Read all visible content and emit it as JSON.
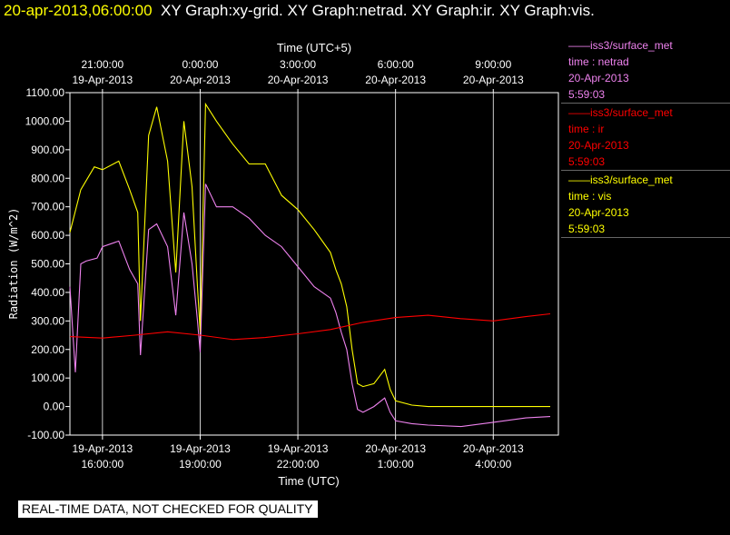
{
  "header": {
    "datetime": "20-apr-2013,06:00:00",
    "graphs": "XY Graph:xy-grid.  XY Graph:netrad.  XY Graph:ir.  XY Graph:vis."
  },
  "banner": "REAL-TIME DATA, NOT CHECKED FOR QUALITY",
  "legend": [
    {
      "name": "——iss3/surface_met",
      "label": "time : netrad",
      "date": "20-Apr-2013",
      "time": "5:59:03",
      "color": "#ee82ee"
    },
    {
      "name": "——iss3/surface_met",
      "label": "time : ir",
      "date": "20-Apr-2013",
      "time": "5:59:03",
      "color": "#ff0000"
    },
    {
      "name": "——iss3/surface_met",
      "label": "time : vis",
      "date": "20-Apr-2013",
      "time": "5:59:03",
      "color": "#ffff00"
    }
  ],
  "chart_data": {
    "type": "line",
    "xlabel": "Time (UTC)",
    "x2label": "Time (UTC+5)",
    "ylabel": "Radiation (W/m^2)",
    "ylim": [
      -100,
      1100
    ],
    "xlim": [
      "2013-04-19 15:00",
      "2013-04-20 06:00"
    ],
    "grid": true,
    "y_ticks": [
      "1100.00",
      "1000.00",
      "900.00",
      "800.00",
      "700.00",
      "600.00",
      "500.00",
      "400.00",
      "300.00",
      "200.00",
      "100.00",
      "0.00",
      "-100.00"
    ],
    "x_ticks": [
      {
        "t": "2013-04-19 16:00",
        "date": "19-Apr-2013",
        "time": "16:00:00"
      },
      {
        "t": "2013-04-19 19:00",
        "date": "19-Apr-2013",
        "time": "19:00:00"
      },
      {
        "t": "2013-04-19 22:00",
        "date": "19-Apr-2013",
        "time": "22:00:00"
      },
      {
        "t": "2013-04-20 01:00",
        "date": "20-Apr-2013",
        "time": "1:00:00"
      },
      {
        "t": "2013-04-20 04:00",
        "date": "20-Apr-2013",
        "time": "4:00:00"
      }
    ],
    "x2_ticks": [
      {
        "t": "2013-04-19 16:00",
        "date": "19-Apr-2013",
        "time": "21:00:00"
      },
      {
        "t": "2013-04-19 19:00",
        "date": "20-Apr-2013",
        "time": "0:00:00"
      },
      {
        "t": "2013-04-19 22:00",
        "date": "20-Apr-2013",
        "time": "3:00:00"
      },
      {
        "t": "2013-04-20 01:00",
        "date": "20-Apr-2013",
        "time": "6:00:00"
      },
      {
        "t": "2013-04-20 04:00",
        "date": "20-Apr-2013",
        "time": "9:00:00"
      }
    ],
    "series": [
      {
        "name": "vis",
        "color": "#ffff00",
        "x": [
          "2013-04-19 15:00",
          "2013-04-19 15:20",
          "2013-04-19 15:45",
          "2013-04-19 16:00",
          "2013-04-19 16:30",
          "2013-04-19 16:50",
          "2013-04-19 17:05",
          "2013-04-19 17:10",
          "2013-04-19 17:25",
          "2013-04-19 17:40",
          "2013-04-19 18:00",
          "2013-04-19 18:15",
          "2013-04-19 18:30",
          "2013-04-19 18:45",
          "2013-04-19 18:55",
          "2013-04-19 19:00",
          "2013-04-19 19:10",
          "2013-04-19 19:30",
          "2013-04-19 20:00",
          "2013-04-19 20:30",
          "2013-04-19 21:00",
          "2013-04-19 21:30",
          "2013-04-19 22:00",
          "2013-04-19 22:30",
          "2013-04-19 23:00",
          "2013-04-19 23:10",
          "2013-04-19 23:20",
          "2013-04-19 23:30",
          "2013-04-19 23:40",
          "2013-04-19 23:50",
          "2013-04-20 00:00",
          "2013-04-20 00:20",
          "2013-04-20 00:40",
          "2013-04-20 00:50",
          "2013-04-20 01:00",
          "2013-04-20 01:30",
          "2013-04-20 02:00",
          "2013-04-20 03:00",
          "2013-04-20 04:00",
          "2013-04-20 05:00",
          "2013-04-20 05:45"
        ],
        "y": [
          610,
          760,
          840,
          830,
          860,
          760,
          680,
          300,
          950,
          1050,
          860,
          470,
          1000,
          770,
          420,
          260,
          1060,
          1000,
          920,
          850,
          850,
          740,
          690,
          620,
          540,
          480,
          430,
          350,
          200,
          80,
          70,
          80,
          130,
          60,
          20,
          5,
          0,
          0,
          0,
          0,
          0
        ]
      },
      {
        "name": "netrad",
        "color": "#ee82ee",
        "x": [
          "2013-04-19 15:00",
          "2013-04-19 15:10",
          "2013-04-19 15:20",
          "2013-04-19 15:30",
          "2013-04-19 15:50",
          "2013-04-19 16:00",
          "2013-04-19 16:30",
          "2013-04-19 16:50",
          "2013-04-19 17:05",
          "2013-04-19 17:10",
          "2013-04-19 17:25",
          "2013-04-19 17:40",
          "2013-04-19 18:00",
          "2013-04-19 18:15",
          "2013-04-19 18:30",
          "2013-04-19 18:45",
          "2013-04-19 18:55",
          "2013-04-19 19:00",
          "2013-04-19 19:10",
          "2013-04-19 19:30",
          "2013-04-19 20:00",
          "2013-04-19 20:30",
          "2013-04-19 21:00",
          "2013-04-19 21:30",
          "2013-04-19 22:00",
          "2013-04-19 22:30",
          "2013-04-19 23:00",
          "2013-04-19 23:10",
          "2013-04-19 23:20",
          "2013-04-19 23:30",
          "2013-04-19 23:40",
          "2013-04-19 23:50",
          "2013-04-20 00:00",
          "2013-04-20 00:20",
          "2013-04-20 00:40",
          "2013-04-20 00:50",
          "2013-04-20 01:00",
          "2013-04-20 01:30",
          "2013-04-20 02:00",
          "2013-04-20 03:00",
          "2013-04-20 04:00",
          "2013-04-20 05:00",
          "2013-04-20 05:45"
        ],
        "y": [
          420,
          120,
          500,
          510,
          520,
          560,
          580,
          480,
          430,
          180,
          620,
          640,
          560,
          320,
          680,
          500,
          300,
          190,
          780,
          700,
          700,
          660,
          600,
          560,
          490,
          420,
          380,
          330,
          260,
          200,
          80,
          -10,
          -20,
          0,
          30,
          -20,
          -50,
          -60,
          -65,
          -70,
          -55,
          -40,
          -35
        ]
      },
      {
        "name": "ir",
        "color": "#ff0000",
        "x": [
          "2013-04-19 15:00",
          "2013-04-19 16:00",
          "2013-04-19 17:00",
          "2013-04-19 18:00",
          "2013-04-19 19:00",
          "2013-04-19 20:00",
          "2013-04-19 21:00",
          "2013-04-19 22:00",
          "2013-04-19 23:00",
          "2013-04-20 00:00",
          "2013-04-20 01:00",
          "2013-04-20 02:00",
          "2013-04-20 03:00",
          "2013-04-20 04:00",
          "2013-04-20 05:00",
          "2013-04-20 05:45"
        ],
        "y": [
          245,
          240,
          250,
          262,
          250,
          235,
          242,
          255,
          270,
          295,
          312,
          320,
          308,
          300,
          315,
          325
        ]
      }
    ]
  }
}
